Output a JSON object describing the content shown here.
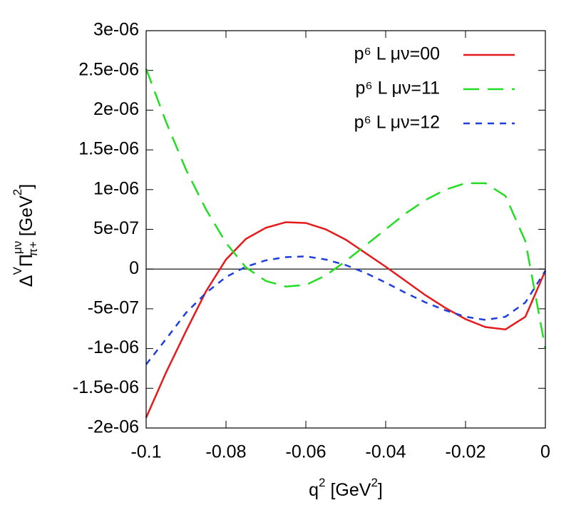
{
  "chart_data": {
    "type": "line",
    "x_label": {
      "q": "q",
      "q_sup": "2",
      "unit": " [GeV",
      "unit_sup": "2",
      "close": "]"
    },
    "y_label": {
      "delta": "Δ",
      "delta_sup": "V",
      "pi": "Π",
      "pi_sup": "μν",
      "pi_sub": "π+",
      "unit": " [GeV",
      "unit_sup": "2",
      "close": "]"
    },
    "x": [
      -0.1,
      -0.095,
      -0.09,
      -0.085,
      -0.08,
      -0.075,
      -0.07,
      -0.065,
      -0.06,
      -0.055,
      -0.05,
      -0.045,
      -0.04,
      -0.035,
      -0.03,
      -0.025,
      -0.02,
      -0.015,
      -0.01,
      -0.005,
      0
    ],
    "series": [
      {
        "name": "p⁶ L μν=00",
        "color": "#e41a1c",
        "dash": "none",
        "values": [
          -1.87e-06,
          -1.3e-06,
          -7.8e-07,
          -2.8e-07,
          1.2e-07,
          3.8e-07,
          5.2e-07,
          5.9e-07,
          5.8e-07,
          5e-07,
          3.7e-07,
          2e-07,
          3e-08,
          -1.5e-07,
          -3.3e-07,
          -4.9e-07,
          -6.3e-07,
          -7.3e-07,
          -7.6e-07,
          -6e-07,
          -2e-08
        ]
      },
      {
        "name": "p⁶ L μν=11",
        "color": "#22dd22",
        "dash": "22,12",
        "values": [
          2.52e-06,
          1.85e-06,
          1.25e-06,
          7.5e-07,
          3.3e-07,
          2e-08,
          -1.5e-07,
          -2.2e-07,
          -2e-07,
          -8e-08,
          1e-07,
          3e-07,
          5e-07,
          7e-07,
          8.7e-07,
          1e-06,
          1.08e-06,
          1.08e-06,
          9.2e-07,
          3.5e-07,
          -1e-06
        ]
      },
      {
        "name": "p⁶ L μν=12",
        "color": "#1f3fdd",
        "dash": "9,8",
        "values": [
          -1.2e-06,
          -8.8e-07,
          -5.5e-07,
          -3e-07,
          -1e-07,
          3e-08,
          1.1e-07,
          1.5e-07,
          1.6e-07,
          1.2e-07,
          5e-08,
          -5e-08,
          -1.7e-07,
          -3e-07,
          -4.2e-07,
          -5.2e-07,
          -6e-07,
          -6.4e-07,
          -6e-07,
          -4.2e-07,
          -2e-08
        ]
      }
    ],
    "xlim": [
      -0.1,
      0
    ],
    "xticks": [
      -0.1,
      -0.08,
      -0.06,
      -0.04,
      -0.02,
      0
    ],
    "ylim": [
      -2e-06,
      3e-06
    ],
    "yticks": [
      {
        "value": -2e-06,
        "label": "-2e-06"
      },
      {
        "value": -1.5e-06,
        "label": "-1.5e-06"
      },
      {
        "value": -1e-06,
        "label": "-1e-06"
      },
      {
        "value": -5e-07,
        "label": "-5e-07"
      },
      0,
      {
        "value": 5e-07,
        "label": "5e-07"
      },
      {
        "value": 1e-06,
        "label": "1e-06"
      },
      {
        "value": 1.5e-06,
        "label": "1.5e-06"
      },
      {
        "value": 2e-06,
        "label": "2e-06"
      },
      {
        "value": 2.5e-06,
        "label": "2.5e-06"
      },
      {
        "value": 3e-06,
        "label": "3e-06"
      }
    ],
    "zero_axis": true,
    "grid": false,
    "legend": "top-right"
  }
}
